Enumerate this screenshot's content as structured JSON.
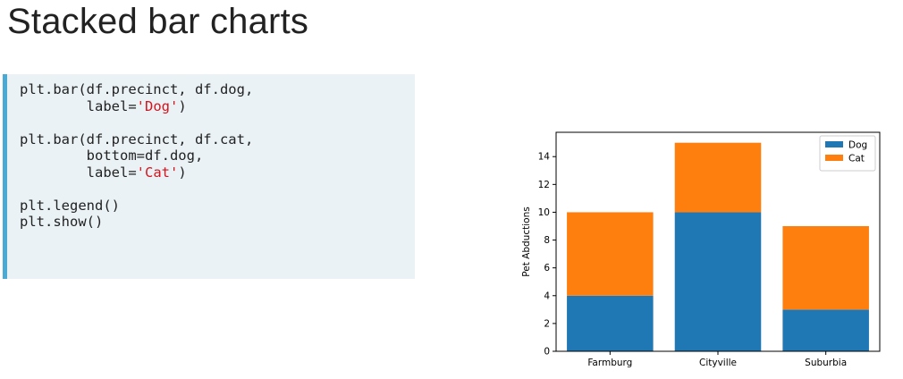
{
  "slide": {
    "title": "Stacked bar charts"
  },
  "code": {
    "lines": [
      [
        {
          "t": "plt.bar(df.precinct, df.dog,"
        }
      ],
      [
        {
          "t": "        label="
        },
        {
          "t": "'Dog'",
          "s": "str"
        },
        {
          "t": ")"
        }
      ],
      [
        {
          "t": ""
        }
      ],
      [
        {
          "t": "plt.bar(df.precinct, df.cat,"
        }
      ],
      [
        {
          "t": "        bottom=df.dog,"
        }
      ],
      [
        {
          "t": "        label="
        },
        {
          "t": "'Cat'",
          "s": "str"
        },
        {
          "t": ")"
        }
      ],
      [
        {
          "t": ""
        }
      ],
      [
        {
          "t": "plt.legend()"
        }
      ],
      [
        {
          "t": "plt.show()"
        }
      ]
    ]
  },
  "chart_data": {
    "type": "bar",
    "stacked": true,
    "categories": [
      "Farmburg",
      "Cityville",
      "Suburbia"
    ],
    "series": [
      {
        "name": "Dog",
        "values": [
          4,
          10,
          3
        ],
        "color": "#1f77b4"
      },
      {
        "name": "Cat",
        "values": [
          6,
          5,
          6
        ],
        "color": "#ff7f0e"
      }
    ],
    "title": "",
    "xlabel": "",
    "ylabel": "Pet Abductions",
    "ylim": [
      0,
      15.75
    ],
    "yticks": [
      0,
      2,
      4,
      6,
      8,
      10,
      12,
      14
    ],
    "grid": false,
    "legend": "top-right"
  }
}
